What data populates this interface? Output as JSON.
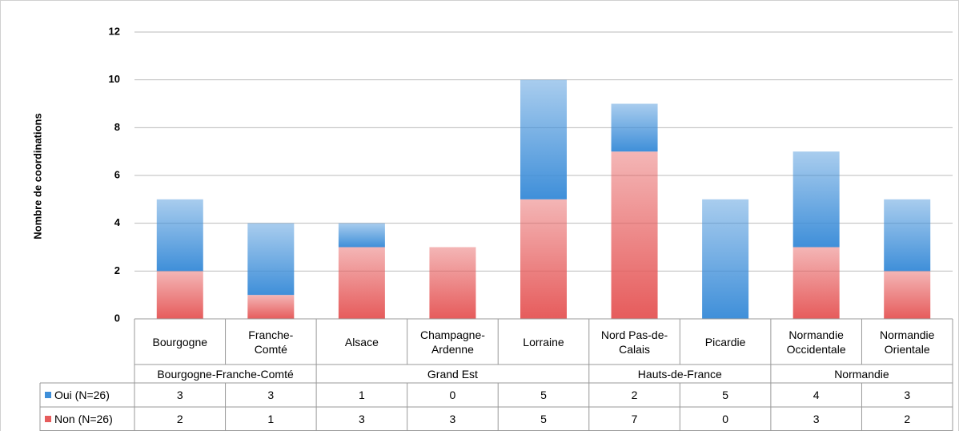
{
  "chart_data": {
    "type": "stacked_bar",
    "y_label": "Nombre de coordinations",
    "categories": [
      "Bourgogne",
      "Franche-\nComté",
      "Alsace",
      "Champagne-\nArdenne",
      "Lorraine",
      "Nord Pas-de-\nCalais",
      "Picardie",
      "Normandie\nOccidentale",
      "Normandie\nOrientale"
    ],
    "groups": [
      {
        "label": "Bourgogne-Franche-Comté",
        "span": 2
      },
      {
        "label": "Grand Est",
        "span": 3
      },
      {
        "label": "Hauts-de-France",
        "span": 2
      },
      {
        "label": "Normandie",
        "span": 2
      }
    ],
    "series": [
      {
        "name": "Non (N=26)",
        "color": "#e65c5c",
        "values": [
          2,
          1,
          3,
          3,
          5,
          7,
          0,
          3,
          2
        ]
      },
      {
        "name": "Oui (N=26)",
        "color": "#3f8fd9",
        "values": [
          3,
          3,
          1,
          0,
          5,
          2,
          5,
          4,
          3
        ]
      }
    ],
    "ylim": [
      0,
      12
    ],
    "yticks": [
      0,
      2,
      4,
      6,
      8,
      10,
      12
    ],
    "grid": true
  }
}
